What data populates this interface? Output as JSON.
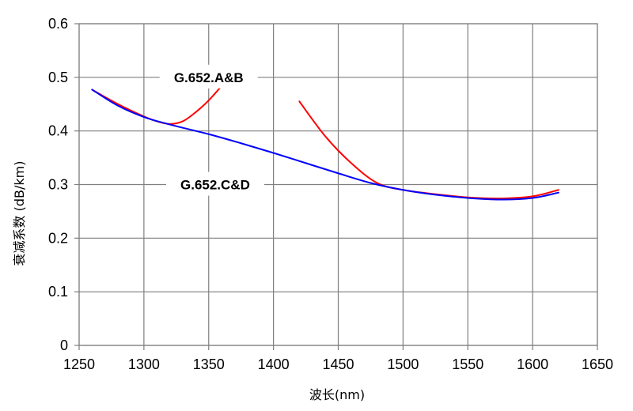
{
  "chart_data": {
    "type": "line",
    "xlabel": "波长(nm)",
    "ylabel": "衰减系数 (dB/km)",
    "xlim": [
      1250,
      1650
    ],
    "ylim": [
      0,
      0.6
    ],
    "x_ticks": [
      "1250",
      "1300",
      "1350",
      "1400",
      "1450",
      "1500",
      "1550",
      "1600",
      "1650"
    ],
    "y_ticks": [
      "0",
      "0.1",
      "0.2",
      "0.3",
      "0.4",
      "0.5",
      "0.6"
    ],
    "grid": true,
    "series": [
      {
        "name": "G.652.A&B",
        "color": "#ff0000",
        "segments": [
          {
            "x": [
              1260,
              1280,
              1300,
              1310,
              1320,
              1330,
              1340,
              1350,
              1360
            ],
            "y": [
              0.477,
              0.45,
              0.427,
              0.418,
              0.413,
              0.418,
              0.435,
              0.457,
              0.484
            ]
          },
          {
            "x": [
              1420,
              1440,
              1460,
              1480,
              1500,
              1525,
              1550,
              1575,
              1600,
              1620
            ],
            "y": [
              0.455,
              0.39,
              0.34,
              0.303,
              0.29,
              0.282,
              0.276,
              0.274,
              0.278,
              0.29
            ]
          }
        ]
      },
      {
        "name": "G.652.C&D",
        "color": "#0000ff",
        "segments": [
          {
            "x": [
              1260,
              1280,
              1300,
              1320,
              1350,
              1375,
              1400,
              1425,
              1450,
              1475,
              1500,
              1525,
              1550,
              1575,
              1600,
              1620
            ],
            "y": [
              0.477,
              0.447,
              0.426,
              0.412,
              0.394,
              0.377,
              0.359,
              0.34,
              0.321,
              0.303,
              0.29,
              0.281,
              0.275,
              0.272,
              0.275,
              0.285
            ]
          }
        ]
      }
    ],
    "annotations": [
      {
        "text": "G.652.A&B",
        "x": 1350,
        "y": 0.5
      },
      {
        "text": "G.652.C&D",
        "x": 1355,
        "y": 0.3
      }
    ]
  }
}
